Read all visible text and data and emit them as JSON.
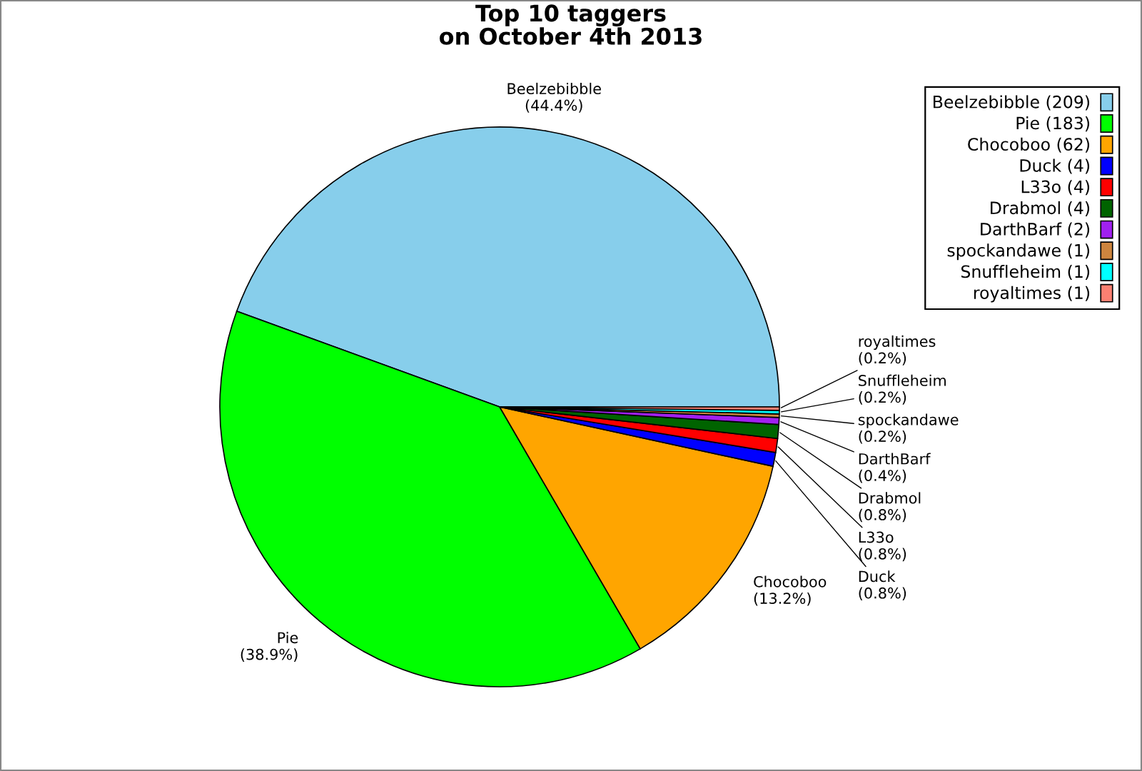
{
  "chart_data": {
    "type": "pie",
    "title": "Top 10 taggers\non October 4th 2013",
    "categories": [
      "Beelzebibble (209)",
      "Pie (183)",
      "Chocoboo (62)",
      "Duck (4)",
      "L33o (4)",
      "Drabmol (4)",
      "DarthBarf (2)",
      "spockandawe (1)",
      "Snuffleheim (1)",
      "royaltimes (1)"
    ],
    "values": [
      44.4,
      38.9,
      13.2,
      0.8,
      0.8,
      0.8,
      0.4,
      0.2,
      0.2,
      0.2
    ],
    "colors": [
      "#87ceeb",
      "#00ff00",
      "#ffa500",
      "#0000ff",
      "#ff0000",
      "#006400",
      "#a020f0",
      "#cd853f",
      "#00ffff",
      "#fa8072"
    ],
    "value_labels": [
      "Beelzebibble\n(44.4%)",
      "Pie\n(38.9%)",
      "Chocoboo\n(13.2%)",
      "Duck\n(0.8%)",
      "L33o\n(0.8%)",
      "Drabmol\n(0.8%)",
      "DarthBarf\n(0.4%)",
      "spockandawe\n(0.2%)",
      "Snuffleheim\n(0.2%)",
      "royaltimes\n(0.2%)"
    ],
    "legend": "top right"
  }
}
